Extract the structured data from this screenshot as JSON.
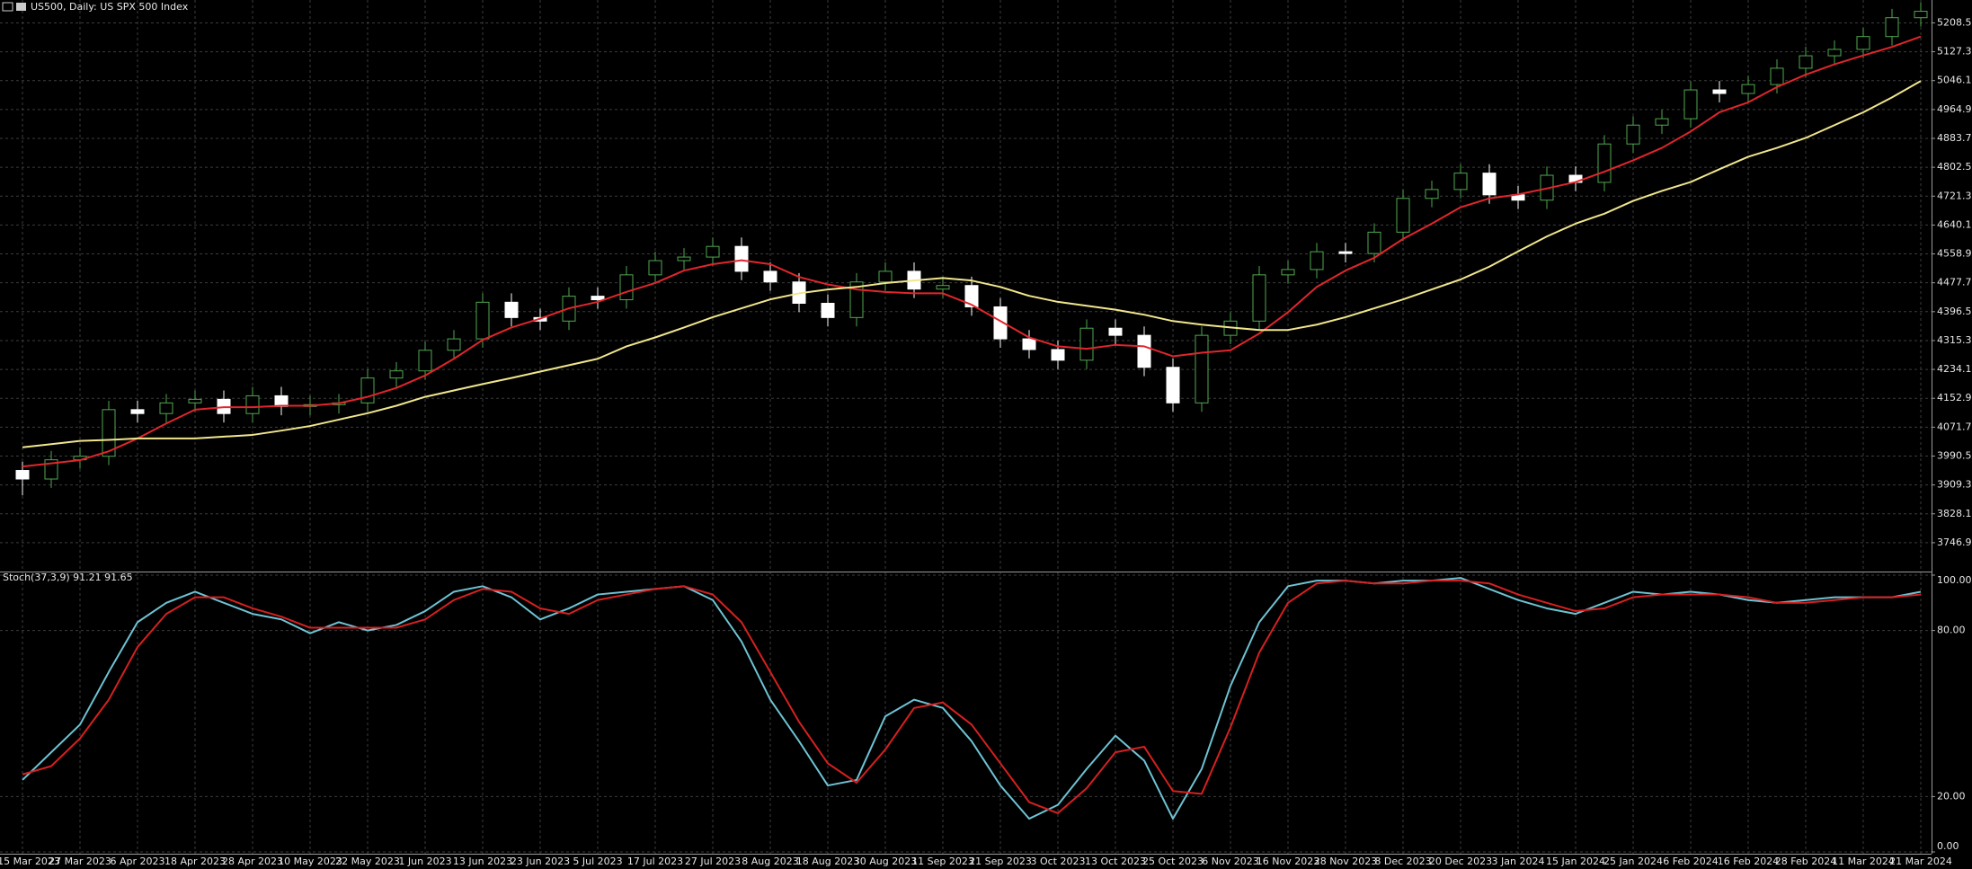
{
  "chart_data": [
    {
      "type": "candlestick",
      "title": "US500, Daily:  US SPX 500 Index",
      "categories": [
        "15 Mar 2023",
        null,
        "27 Mar 2023",
        null,
        "6 Apr 2023",
        null,
        "18 Apr 2023",
        null,
        "28 Apr 2023",
        null,
        "10 May 2023",
        null,
        "22 May 2023",
        null,
        "1 Jun 2023",
        null,
        "13 Jun 2023",
        null,
        "23 Jun 2023",
        null,
        "5 Jul 2023",
        null,
        "17 Jul 2023",
        null,
        "27 Jul 2023",
        null,
        "8 Aug 2023",
        null,
        "18 Aug 2023",
        null,
        "30 Aug 2023",
        null,
        "11 Sep 2023",
        null,
        "21 Sep 2023",
        null,
        "3 Oct 2023",
        null,
        "13 Oct 2023",
        null,
        "25 Oct 2023",
        null,
        "6 Nov 2023",
        null,
        "16 Nov 2023",
        null,
        "28 Nov 2023",
        null,
        "8 Dec 2023",
        null,
        "20 Dec 2023",
        null,
        "3 Jan 2024",
        null,
        "15 Jan 2024",
        null,
        "25 Jan 2024",
        null,
        "6 Feb 2024",
        null,
        "16 Feb 2024",
        null,
        "28 Feb 2024",
        null,
        "11 Mar 2024",
        null,
        "21 Mar 2024"
      ],
      "open": [
        3950,
        3926,
        3980,
        3990,
        4121,
        4110,
        4140,
        4150,
        4110,
        4160,
        4130,
        4135,
        4140,
        4210,
        4230,
        4288,
        4320,
        4423,
        4380,
        4370,
        4440,
        4430,
        4500,
        4540,
        4550,
        4580,
        4510,
        4480,
        4420,
        4380,
        4480,
        4510,
        4460,
        4470,
        4410,
        4320,
        4290,
        4260,
        4350,
        4330,
        4240,
        4140,
        4330,
        4370,
        4500,
        4515,
        4565,
        4560,
        4620,
        4715,
        4740,
        4786,
        4725,
        4710,
        4780,
        4760,
        4868,
        4921,
        4939,
        5020,
        5010,
        5035,
        5081,
        5116,
        5134,
        5170,
        5223
      ],
      "high": [
        3975,
        4005,
        4015,
        4146,
        4146,
        4165,
        4175,
        4175,
        4185,
        4185,
        4160,
        4165,
        4235,
        4255,
        4313,
        4345,
        4448,
        4448,
        4405,
        4465,
        4465,
        4525,
        4565,
        4575,
        4605,
        4605,
        4535,
        4505,
        4445,
        4505,
        4535,
        4535,
        4495,
        4495,
        4435,
        4345,
        4315,
        4375,
        4375,
        4355,
        4265,
        4355,
        4395,
        4525,
        4540,
        4590,
        4590,
        4645,
        4740,
        4765,
        4811,
        4811,
        4750,
        4805,
        4805,
        4893,
        4946,
        4964,
        5045,
        5045,
        5060,
        5106,
        5141,
        5159,
        5195,
        5248,
        5266
      ],
      "low": [
        3880,
        3901,
        3955,
        3965,
        4085,
        4085,
        4115,
        4085,
        4085,
        4105,
        4105,
        4110,
        4115,
        4185,
        4205,
        4263,
        4295,
        4355,
        4345,
        4345,
        4405,
        4405,
        4475,
        4515,
        4525,
        4485,
        4455,
        4395,
        4355,
        4355,
        4455,
        4435,
        4435,
        4385,
        4295,
        4265,
        4235,
        4235,
        4305,
        4215,
        4115,
        4115,
        4305,
        4345,
        4475,
        4490,
        4535,
        4535,
        4595,
        4690,
        4715,
        4700,
        4685,
        4685,
        4735,
        4735,
        4843,
        4896,
        4914,
        4985,
        4985,
        5010,
        5056,
        5091,
        5109,
        5145,
        5198
      ],
      "close": [
        3926,
        3980,
        3990,
        4121,
        4110,
        4140,
        4150,
        4110,
        4160,
        4130,
        4135,
        4140,
        4210,
        4230,
        4288,
        4320,
        4423,
        4380,
        4370,
        4440,
        4430,
        4500,
        4540,
        4550,
        4580,
        4510,
        4480,
        4420,
        4380,
        4480,
        4510,
        4460,
        4470,
        4410,
        4320,
        4290,
        4260,
        4350,
        4330,
        4240,
        4140,
        4330,
        4370,
        4500,
        4515,
        4565,
        4560,
        4620,
        4715,
        4740,
        4786,
        4725,
        4710,
        4780,
        4760,
        4868,
        4921,
        4939,
        5020,
        5010,
        5035,
        5081,
        5116,
        5134,
        5170,
        5223,
        5241
      ],
      "up_color": "#4fa84f",
      "down_color": "#ffffff",
      "lines": [
        {
          "color": "#e0262c",
          "values": [
            3961,
            3970,
            3979,
            4004,
            4040,
            4082,
            4121,
            4128,
            4128,
            4132,
            4132,
            4139,
            4157,
            4182,
            4217,
            4264,
            4317,
            4352,
            4377,
            4406,
            4424,
            4452,
            4477,
            4512,
            4530,
            4541,
            4530,
            4494,
            4473,
            4459,
            4452,
            4448,
            4448,
            4416,
            4370,
            4324,
            4299,
            4292,
            4303,
            4299,
            4271,
            4281,
            4288,
            4335,
            4395,
            4466,
            4512,
            4548,
            4601,
            4644,
            4690,
            4715,
            4726,
            4743,
            4761,
            4790,
            4822,
            4857,
            4903,
            4957,
            4985,
            5028,
            5063,
            5092,
            5117,
            5141,
            5170
          ]
        },
        {
          "color": "#f0e68c",
          "values": [
            4015,
            4024,
            4033,
            4036,
            4040,
            4040,
            4040,
            4045,
            4050,
            4062,
            4075,
            4093,
            4111,
            4132,
            4157,
            4175,
            4193,
            4210,
            4228,
            4246,
            4264,
            4299,
            4324,
            4352,
            4381,
            4406,
            4431,
            4448,
            4459,
            4466,
            4477,
            4484,
            4491,
            4484,
            4466,
            4441,
            4424,
            4413,
            4402,
            4388,
            4370,
            4360,
            4352,
            4345,
            4345,
            4360,
            4381,
            4406,
            4431,
            4459,
            4487,
            4523,
            4566,
            4608,
            4644,
            4672,
            4708,
            4736,
            4761,
            4797,
            4832,
            4857,
            4885,
            4921,
            4957,
            4999,
            5045
          ]
        }
      ],
      "ylim": [
        3665.8,
        5272.8
      ],
      "yticks": [
        3746.9,
        3828.1,
        3909.3,
        3990.5,
        4071.7,
        4152.9,
        4234.1,
        4315.3,
        4396.5,
        4477.7,
        4558.9,
        4640.1,
        4721.3,
        4802.5,
        4883.7,
        4964.9,
        5046.1,
        5127.3,
        5208.5
      ],
      "grid": true
    },
    {
      "type": "line",
      "title": "Stoch(37,3,9) 91.21 91.65",
      "series": [
        {
          "color": "#6ec3d4",
          "values": [
            26,
            36,
            46,
            65,
            83,
            90,
            94,
            90,
            86,
            84,
            79,
            83,
            80,
            82,
            87,
            94,
            96,
            92,
            84,
            88,
            93,
            94,
            95,
            96,
            91,
            76,
            55,
            40,
            24,
            26,
            49,
            55,
            52,
            40,
            24,
            12,
            17,
            30,
            42,
            33,
            12,
            30,
            60,
            83,
            96,
            98,
            98,
            97,
            98,
            98,
            99,
            95,
            91,
            88,
            86,
            90,
            94,
            93,
            94,
            93,
            91,
            90,
            91,
            92,
            92,
            92,
            94
          ]
        },
        {
          "color": "#d62020",
          "values": [
            28,
            31,
            41,
            55,
            74,
            86,
            92,
            92,
            88,
            85,
            81,
            81,
            81,
            81,
            84,
            91,
            95,
            94,
            88,
            86,
            91,
            93,
            95,
            96,
            93,
            83,
            65,
            47,
            32,
            25,
            37,
            52,
            54,
            46,
            32,
            18,
            14,
            23,
            36,
            38,
            22,
            21,
            45,
            72,
            90,
            97,
            98,
            97,
            97,
            98,
            98,
            97,
            93,
            90,
            87,
            88,
            92,
            93,
            93,
            93,
            92,
            90,
            90,
            91,
            92,
            92,
            93
          ]
        }
      ],
      "ylim": [
        0,
        100
      ],
      "yticks": [
        {
          "value": 100,
          "label": "100.00"
        },
        {
          "value": 80,
          "label": "80.00"
        },
        {
          "value": 20,
          "label": "20.00"
        },
        {
          "value": 0,
          "label": "0.00"
        }
      ],
      "grid": true
    }
  ]
}
